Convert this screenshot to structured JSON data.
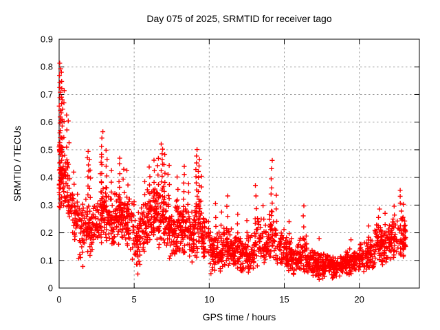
{
  "chart_data": {
    "type": "scatter",
    "title": "Day 075 of 2025, SRMTID for receiver tago",
    "xlabel": "GPS time / hours",
    "ylabel": "SRMTID / TECUs",
    "xlim": [
      0,
      24
    ],
    "ylim": [
      0,
      0.9
    ],
    "xticks": [
      0,
      5,
      10,
      15,
      20
    ],
    "yticks": [
      0,
      0.1,
      0.2,
      0.3,
      0.4,
      0.5,
      0.6,
      0.7,
      0.8,
      0.9
    ],
    "grid": true,
    "legend": "none",
    "marker": "plus",
    "marker_color": "#ff0000",
    "grid_color": "#999999",
    "border_color": "#000000",
    "background": "#ffffff",
    "data_time_range_hours": [
      0.02,
      23.1
    ],
    "data_value_range_tecus": [
      0.03,
      0.81
    ],
    "seed": 75,
    "dense_bands_format": "[hour_start, hour_end, value_min, value_max, n_points]",
    "dense_bands": [
      [
        0.0,
        0.3,
        0.26,
        0.52,
        40
      ],
      [
        0.3,
        0.6,
        0.27,
        0.48,
        26
      ],
      [
        0.6,
        0.9,
        0.22,
        0.42,
        24
      ],
      [
        0.9,
        1.3,
        0.15,
        0.35,
        30
      ],
      [
        1.3,
        1.7,
        0.08,
        0.3,
        32
      ],
      [
        1.7,
        2.1,
        0.1,
        0.34,
        34
      ],
      [
        2.1,
        2.5,
        0.12,
        0.32,
        34
      ],
      [
        2.5,
        2.9,
        0.13,
        0.35,
        36
      ],
      [
        2.9,
        3.3,
        0.15,
        0.38,
        38
      ],
      [
        3.3,
        3.7,
        0.13,
        0.35,
        38
      ],
      [
        3.7,
        4.1,
        0.15,
        0.38,
        38
      ],
      [
        4.1,
        4.5,
        0.15,
        0.36,
        38
      ],
      [
        4.5,
        5.0,
        0.1,
        0.34,
        40
      ],
      [
        5.0,
        5.4,
        0.06,
        0.28,
        36
      ],
      [
        5.4,
        5.8,
        0.12,
        0.32,
        36
      ],
      [
        5.8,
        6.2,
        0.15,
        0.36,
        38
      ],
      [
        6.2,
        6.6,
        0.15,
        0.38,
        38
      ],
      [
        6.6,
        7.0,
        0.14,
        0.38,
        38
      ],
      [
        7.0,
        7.4,
        0.1,
        0.34,
        38
      ],
      [
        7.4,
        7.8,
        0.08,
        0.3,
        38
      ],
      [
        7.8,
        8.2,
        0.1,
        0.33,
        38
      ],
      [
        8.2,
        8.6,
        0.1,
        0.32,
        38
      ],
      [
        8.6,
        9.0,
        0.08,
        0.3,
        38
      ],
      [
        9.0,
        9.5,
        0.1,
        0.35,
        40
      ],
      [
        9.5,
        10.0,
        0.07,
        0.28,
        40
      ],
      [
        10.0,
        10.5,
        0.05,
        0.21,
        44
      ],
      [
        10.5,
        11.0,
        0.05,
        0.22,
        44
      ],
      [
        11.0,
        11.5,
        0.05,
        0.24,
        44
      ],
      [
        11.5,
        12.0,
        0.05,
        0.21,
        44
      ],
      [
        12.0,
        12.5,
        0.05,
        0.19,
        44
      ],
      [
        12.5,
        13.0,
        0.04,
        0.2,
        44
      ],
      [
        13.0,
        13.5,
        0.07,
        0.28,
        38
      ],
      [
        13.5,
        14.0,
        0.06,
        0.24,
        38
      ],
      [
        14.0,
        14.4,
        0.08,
        0.3,
        30
      ],
      [
        14.4,
        15.0,
        0.06,
        0.24,
        40
      ],
      [
        15.0,
        15.5,
        0.05,
        0.19,
        44
      ],
      [
        15.5,
        16.0,
        0.04,
        0.17,
        44
      ],
      [
        16.0,
        16.5,
        0.04,
        0.2,
        44
      ],
      [
        16.5,
        17.0,
        0.03,
        0.15,
        44
      ],
      [
        17.0,
        17.5,
        0.03,
        0.14,
        44
      ],
      [
        17.5,
        18.0,
        0.03,
        0.13,
        46
      ],
      [
        18.0,
        18.5,
        0.03,
        0.13,
        46
      ],
      [
        18.5,
        19.0,
        0.04,
        0.13,
        46
      ],
      [
        19.0,
        19.5,
        0.04,
        0.15,
        44
      ],
      [
        19.5,
        20.0,
        0.05,
        0.14,
        42
      ],
      [
        20.0,
        20.5,
        0.05,
        0.17,
        42
      ],
      [
        20.5,
        21.0,
        0.06,
        0.19,
        42
      ],
      [
        21.0,
        21.5,
        0.08,
        0.24,
        42
      ],
      [
        21.5,
        22.0,
        0.08,
        0.23,
        42
      ],
      [
        22.0,
        22.5,
        0.1,
        0.26,
        42
      ],
      [
        22.5,
        23.1,
        0.1,
        0.28,
        44
      ]
    ],
    "spike_columns_format": "[hour, value_top, value_base, n_points]",
    "spike_columns": [
      [
        0.05,
        0.81,
        0.45,
        16
      ],
      [
        0.05,
        0.52,
        0.49,
        8
      ],
      [
        0.13,
        0.78,
        0.42,
        12
      ],
      [
        0.22,
        0.68,
        0.38,
        9
      ],
      [
        0.35,
        0.72,
        0.33,
        7
      ],
      [
        0.5,
        0.63,
        0.3,
        6
      ],
      [
        0.62,
        0.6,
        0.27,
        5
      ],
      [
        1.0,
        0.42,
        0.2,
        5
      ],
      [
        1.55,
        0.3,
        0.075,
        6
      ],
      [
        1.93,
        0.5,
        0.3,
        8
      ],
      [
        2.05,
        0.46,
        0.28,
        6
      ],
      [
        2.78,
        0.48,
        0.3,
        6
      ],
      [
        2.87,
        0.565,
        0.3,
        9
      ],
      [
        3.15,
        0.5,
        0.28,
        7
      ],
      [
        3.5,
        0.42,
        0.25,
        5
      ],
      [
        4.0,
        0.47,
        0.26,
        8
      ],
      [
        4.3,
        0.43,
        0.25,
        5
      ],
      [
        4.55,
        0.42,
        0.22,
        5
      ],
      [
        5.2,
        0.22,
        0.05,
        7
      ],
      [
        5.7,
        0.38,
        0.2,
        5
      ],
      [
        6.05,
        0.44,
        0.25,
        6
      ],
      [
        6.35,
        0.46,
        0.28,
        5
      ],
      [
        6.6,
        0.47,
        0.3,
        6
      ],
      [
        6.85,
        0.525,
        0.33,
        10
      ],
      [
        7.0,
        0.48,
        0.3,
        6
      ],
      [
        7.3,
        0.44,
        0.25,
        6
      ],
      [
        7.9,
        0.4,
        0.22,
        5
      ],
      [
        8.3,
        0.44,
        0.24,
        7
      ],
      [
        8.6,
        0.38,
        0.2,
        5
      ],
      [
        9.15,
        0.495,
        0.3,
        9
      ],
      [
        9.3,
        0.47,
        0.28,
        8
      ],
      [
        9.45,
        0.4,
        0.22,
        5
      ],
      [
        10.4,
        0.3,
        0.12,
        5
      ],
      [
        10.8,
        0.28,
        0.12,
        4
      ],
      [
        11.2,
        0.33,
        0.12,
        6
      ],
      [
        11.9,
        0.27,
        0.1,
        5
      ],
      [
        12.5,
        0.24,
        0.1,
        4
      ],
      [
        13.1,
        0.37,
        0.15,
        6
      ],
      [
        13.6,
        0.3,
        0.12,
        4
      ],
      [
        14.15,
        0.46,
        0.18,
        9
      ],
      [
        14.45,
        0.33,
        0.14,
        5
      ],
      [
        15.3,
        0.24,
        0.08,
        4
      ],
      [
        16.3,
        0.3,
        0.08,
        6
      ],
      [
        17.3,
        0.18,
        0.05,
        3
      ],
      [
        19.4,
        0.18,
        0.06,
        4
      ],
      [
        20.6,
        0.22,
        0.08,
        4
      ],
      [
        21.3,
        0.29,
        0.1,
        6
      ],
      [
        21.75,
        0.27,
        0.1,
        5
      ],
      [
        22.3,
        0.3,
        0.12,
        5
      ],
      [
        22.75,
        0.35,
        0.13,
        9
      ],
      [
        22.95,
        0.3,
        0.12,
        5
      ]
    ]
  }
}
